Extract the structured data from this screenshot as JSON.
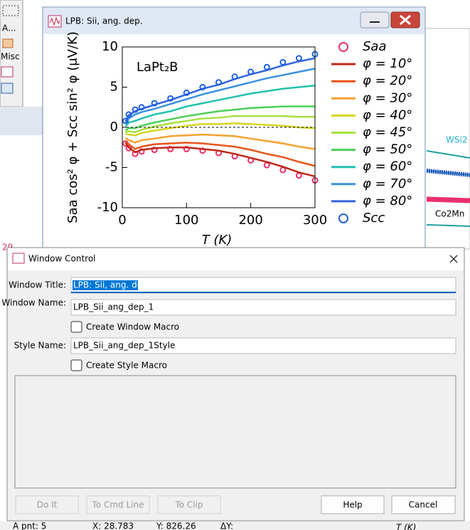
{
  "background": {
    "toolbar": [
      "A...",
      "Misc"
    ],
    "labels": [
      "WSi2",
      "Co2Mn",
      "29"
    ],
    "status_bar": [
      "A pnt: 5",
      "X: 28.783",
      "Y: 826.26",
      "ΔY:",
      "T (K)"
    ]
  },
  "graph_window": {
    "title": "LPB: Sii, ang. dep."
  },
  "chart_data": {
    "type": "line",
    "annotation": "LaPt₂B",
    "x_label": "T (K)",
    "y_label": "Saa cos² φ + Scc sin² φ (μV/K)",
    "xlim": [
      0,
      300
    ],
    "xticks": [
      0,
      100,
      200,
      300
    ],
    "ylim": [
      -10,
      10
    ],
    "yticks": [
      -10,
      -5,
      0,
      5,
      10
    ],
    "hline": 0,
    "x": [
      5,
      10,
      20,
      30,
      50,
      75,
      100,
      125,
      150,
      175,
      200,
      225,
      250,
      275,
      300
    ],
    "series": [
      {
        "name": "Saa",
        "color": "#e8306a",
        "marker": "circle",
        "values": [
          -2.0,
          -2.6,
          -3.3,
          -3.0,
          -2.8,
          -2.7,
          -2.7,
          -2.9,
          -3.2,
          -3.6,
          -4.1,
          -4.7,
          -5.3,
          -6.0,
          -6.6
        ]
      },
      {
        "name": "φ = 10°",
        "color": "#c0281c",
        "marker": "line",
        "values": [
          -1.9,
          -2.5,
          -3.1,
          -2.8,
          -2.6,
          -2.5,
          -2.5,
          -2.7,
          -2.9,
          -3.3,
          -3.8,
          -4.3,
          -4.9,
          -5.6,
          -6.1
        ]
      },
      {
        "name": "φ = 20°",
        "color": "#e8541c",
        "marker": "line",
        "values": [
          -1.7,
          -2.1,
          -2.7,
          -2.4,
          -2.1,
          -2.0,
          -1.9,
          -2.0,
          -2.2,
          -2.4,
          -2.8,
          -3.3,
          -3.7,
          -4.3,
          -4.8
        ]
      },
      {
        "name": "φ = 30°",
        "color": "#f5a030",
        "marker": "line",
        "values": [
          -1.3,
          -1.6,
          -1.9,
          -1.6,
          -1.4,
          -1.1,
          -1.0,
          -0.9,
          -1.0,
          -1.1,
          -1.4,
          -1.7,
          -2.0,
          -2.4,
          -2.7
        ]
      },
      {
        "name": "φ = 40°",
        "color": "#d6d420",
        "marker": "line",
        "values": [
          -0.8,
          -0.9,
          -1.0,
          -0.7,
          -0.4,
          -0.1,
          0.2,
          0.4,
          0.4,
          0.5,
          0.4,
          0.3,
          0.2,
          0.0,
          -0.1
        ]
      },
      {
        "name": "φ = 45°",
        "color": "#a8e040",
        "marker": "line",
        "values": [
          -0.6,
          -0.5,
          -0.6,
          -0.3,
          0.1,
          0.5,
          0.8,
          1.1,
          1.2,
          1.4,
          1.4,
          1.4,
          1.4,
          1.3,
          1.3
        ]
      },
      {
        "name": "φ = 50°",
        "color": "#4ccf58",
        "marker": "line",
        "values": [
          -0.4,
          -0.1,
          -0.1,
          0.2,
          0.6,
          1.0,
          1.4,
          1.7,
          2.0,
          2.2,
          2.4,
          2.5,
          2.6,
          2.6,
          2.6
        ]
      },
      {
        "name": "φ = 60°",
        "color": "#20c0b0",
        "marker": "line",
        "values": [
          0.1,
          0.6,
          0.8,
          1.1,
          1.6,
          2.0,
          2.6,
          3.0,
          3.4,
          3.8,
          4.2,
          4.5,
          4.8,
          5.0,
          5.2
        ]
      },
      {
        "name": "φ = 70°",
        "color": "#3a90e0",
        "marker": "line",
        "values": [
          0.5,
          1.1,
          1.6,
          1.9,
          2.3,
          2.9,
          3.5,
          4.1,
          4.6,
          5.1,
          5.6,
          6.1,
          6.5,
          6.9,
          7.3
        ]
      },
      {
        "name": "φ = 80°",
        "color": "#3064e0",
        "marker": "line",
        "values": [
          0.7,
          1.5,
          2.0,
          2.3,
          2.8,
          3.4,
          4.1,
          4.8,
          5.3,
          6.0,
          6.6,
          7.1,
          7.7,
          8.2,
          8.6
        ]
      },
      {
        "name": "Scc",
        "color": "#2060e0",
        "marker": "circle",
        "values": [
          0.8,
          1.6,
          2.2,
          2.5,
          3.0,
          3.6,
          4.3,
          5.0,
          5.6,
          6.3,
          6.9,
          7.5,
          8.1,
          8.6,
          9.1
        ]
      }
    ]
  },
  "dialog": {
    "title": "Window Control",
    "fields": [
      {
        "label": "Window Title:",
        "value": "LPB: Sii, ang. dep."
      },
      {
        "label": "Window Name:",
        "value": "LPB_Sii_ang_dep_1"
      },
      {
        "label": "Style Name:",
        "value": "LPB_Sii_ang_dep_1Style"
      }
    ],
    "checkboxes": [
      "Create Window Macro",
      "Create Style Macro"
    ],
    "buttons": [
      "Do It",
      "To Cmd Line",
      "To Clip",
      "Help",
      "Cancel"
    ]
  }
}
